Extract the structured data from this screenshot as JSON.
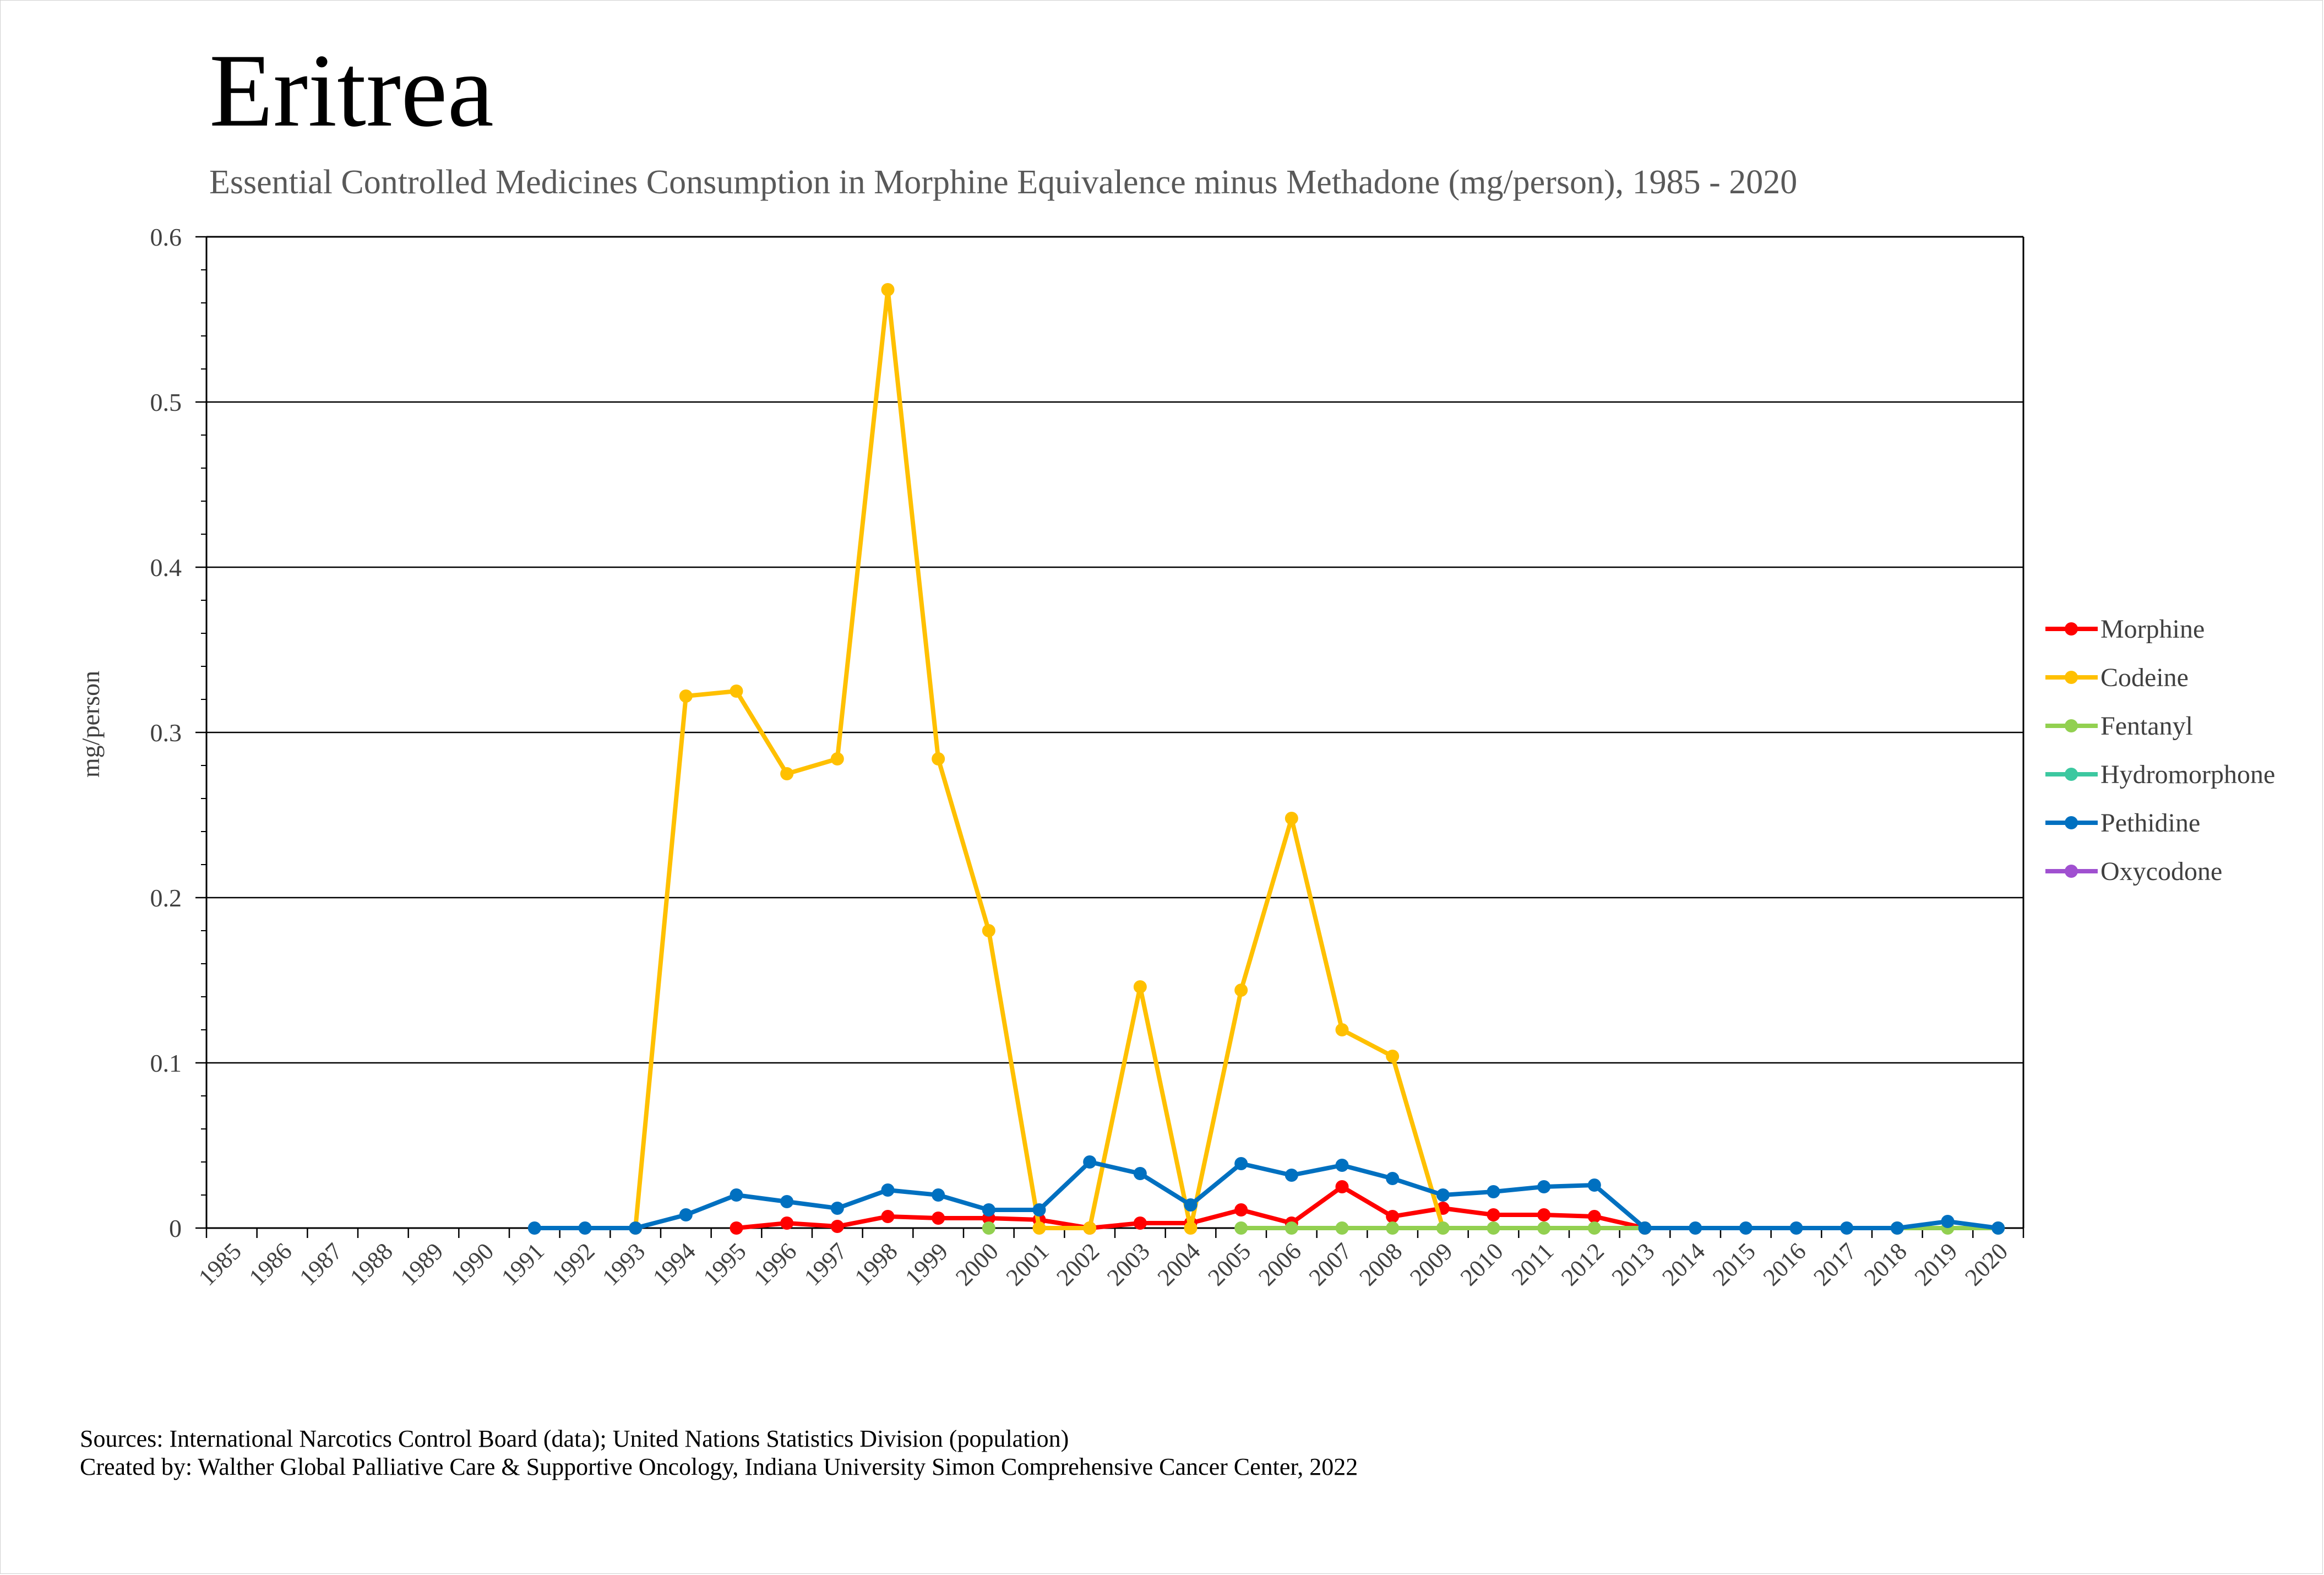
{
  "title": "Eritrea",
  "subtitle": "Essential Controlled Medicines Consumption in Morphine Equivalence minus Methadone (mg/person), 1985 - 2020",
  "sources": {
    "line1": "Sources: International Narcotics Control Board (data); United Nations Statistics Division (population)",
    "line2": "Created by: Walther Global Palliative Care & Supportive Oncology, Indiana University Simon Comprehensive Cancer Center, 2022"
  },
  "chart_data": {
    "type": "line",
    "title": "Eritrea",
    "subtitle": "Essential Controlled Medicines Consumption in Morphine Equivalence minus Methadone (mg/person), 1985 - 2020",
    "xlabel": "",
    "ylabel": "mg/person",
    "ylim": [
      0,
      0.6
    ],
    "yticks": [
      "0",
      "0.1",
      "0.2",
      "0.3",
      "0.4",
      "0.5",
      "0.6"
    ],
    "grid": "horizontal major",
    "legend_position": "right",
    "x": [
      "1985",
      "1986",
      "1987",
      "1988",
      "1989",
      "1990",
      "1991",
      "1992",
      "1993",
      "1994",
      "1995",
      "1996",
      "1997",
      "1998",
      "1999",
      "2000",
      "2001",
      "2002",
      "2003",
      "2004",
      "2005",
      "2006",
      "2007",
      "2008",
      "2009",
      "2010",
      "2011",
      "2012",
      "2013",
      "2014",
      "2015",
      "2016",
      "2017",
      "2018",
      "2019",
      "2020"
    ],
    "series": [
      {
        "name": "Morphine",
        "color": "#ff0000",
        "values": [
          null,
          null,
          null,
          null,
          null,
          null,
          null,
          null,
          null,
          null,
          0.0,
          0.003,
          0.001,
          0.007,
          0.006,
          0.006,
          0.005,
          0.0,
          0.003,
          0.003,
          0.011,
          0.003,
          0.025,
          0.007,
          0.012,
          0.008,
          0.008,
          0.007,
          0.0,
          null,
          null,
          null,
          null,
          null,
          null,
          null
        ]
      },
      {
        "name": "Codeine",
        "color": "#ffc000",
        "values": [
          null,
          null,
          null,
          null,
          null,
          null,
          null,
          null,
          0.0,
          0.322,
          0.325,
          0.275,
          0.284,
          0.568,
          0.284,
          0.18,
          0.0,
          0.0,
          0.146,
          0.0,
          0.144,
          0.248,
          0.12,
          0.104,
          0.0,
          null,
          null,
          null,
          null,
          null,
          null,
          null,
          null,
          null,
          null,
          null
        ]
      },
      {
        "name": "Fentanyl",
        "color": "#92d050",
        "values": [
          null,
          null,
          null,
          null,
          null,
          null,
          null,
          null,
          null,
          null,
          null,
          null,
          null,
          null,
          null,
          0.0,
          null,
          null,
          null,
          null,
          0.0,
          0.0,
          0.0,
          0.0,
          0.0,
          0.0,
          0.0,
          0.0,
          0.0,
          null,
          null,
          null,
          null,
          0.0,
          0.0,
          0.0
        ]
      },
      {
        "name": "Hydromorphone",
        "color": "#3cc8a0",
        "values": [
          null,
          null,
          null,
          null,
          null,
          null,
          null,
          null,
          null,
          null,
          null,
          null,
          null,
          null,
          null,
          null,
          null,
          null,
          null,
          null,
          null,
          null,
          null,
          null,
          null,
          null,
          null,
          null,
          null,
          null,
          null,
          null,
          null,
          null,
          null,
          null
        ]
      },
      {
        "name": "Pethidine",
        "color": "#0070c0",
        "values": [
          null,
          null,
          null,
          null,
          null,
          null,
          0.0,
          0.0,
          0.0,
          0.008,
          0.02,
          0.016,
          0.012,
          0.023,
          0.02,
          0.011,
          0.011,
          0.04,
          0.033,
          0.014,
          0.039,
          0.032,
          0.038,
          0.03,
          0.02,
          0.022,
          0.025,
          0.026,
          0.0,
          0.0,
          0.0,
          0.0,
          0.0,
          0.0,
          0.004,
          0.0
        ]
      },
      {
        "name": "Oxycodone",
        "color": "#a050d0",
        "values": [
          null,
          null,
          null,
          null,
          null,
          null,
          null,
          null,
          null,
          null,
          null,
          null,
          null,
          null,
          null,
          null,
          null,
          null,
          null,
          null,
          null,
          null,
          null,
          null,
          null,
          null,
          null,
          null,
          null,
          null,
          null,
          null,
          null,
          null,
          null,
          null
        ]
      }
    ]
  }
}
